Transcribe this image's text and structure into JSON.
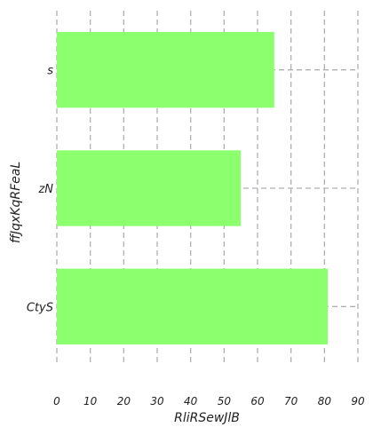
{
  "chart_data": {
    "type": "bar",
    "orientation": "horizontal",
    "categories": [
      "s",
      "zN",
      "CtyS"
    ],
    "values": [
      65,
      55,
      81
    ],
    "xlabel": "RliRSewJlB",
    "ylabel": "ffJqxKqRFeaL",
    "xlim": [
      0,
      90
    ],
    "xticks": [
      "0",
      "10",
      "20",
      "30",
      "40",
      "50",
      "60",
      "70",
      "80",
      "90"
    ],
    "grid": true,
    "grid_style": "dashed",
    "colors": {
      "bar": "#8cff6e",
      "grid": "#b0b0b0"
    }
  }
}
